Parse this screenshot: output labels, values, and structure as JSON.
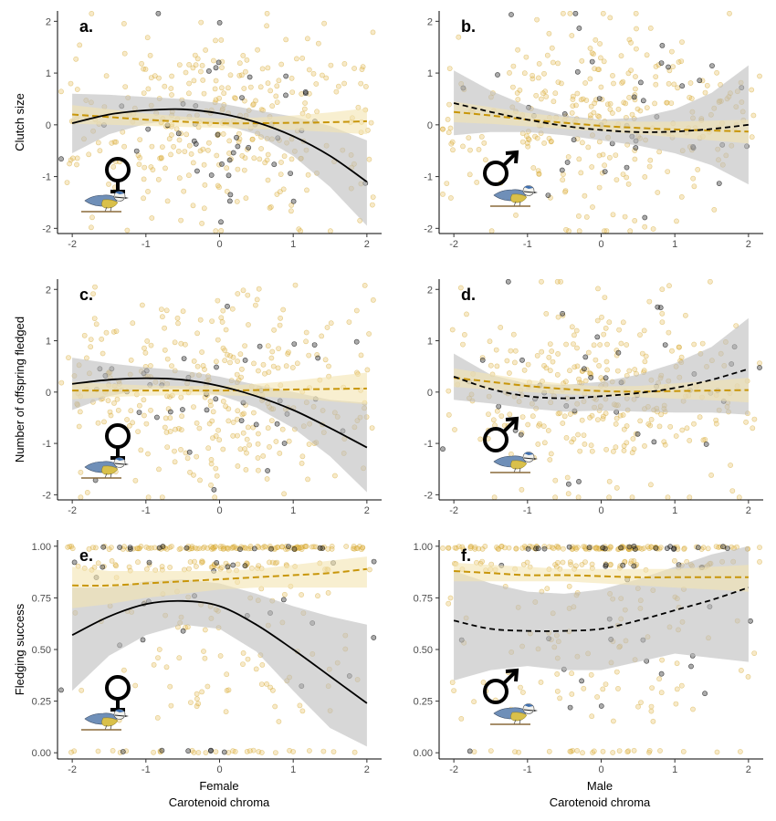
{
  "colors": {
    "point_a": "#e8c060",
    "point_b": "#444444",
    "line_a": "#c8960a",
    "line_b": "#000000",
    "band_a": "#f4e4b0",
    "band_b": "#bdbdbd"
  },
  "icons": {
    "female": "female-symbol-icon",
    "male": "male-symbol-icon",
    "bird": "blue-tit-bird-icon"
  },
  "col_labels": [
    {
      "group": "Female",
      "axis": "Carotenoid chroma"
    },
    {
      "group": "Male",
      "axis": "Carotenoid chroma"
    }
  ],
  "chart_data": [
    {
      "id": "a",
      "type": "scatter",
      "letter": "a.",
      "row": 0,
      "col": 0,
      "sex": "female",
      "ylabel": "Clutch size",
      "xlim": [
        -2.2,
        2.2
      ],
      "ylim": [
        -2.1,
        2.2
      ],
      "xticks": [
        -2,
        -1,
        0,
        1,
        2
      ],
      "yticks": [
        -2,
        -1,
        0,
        1,
        2
      ],
      "series": [
        {
          "x": [
            -2,
            -1.5,
            -1,
            -0.5,
            0,
            0.5,
            1,
            1.5,
            2
          ],
          "y": [
            0.2,
            0.15,
            0.1,
            0.06,
            0.03,
            0.03,
            0.04,
            0.05,
            0.07
          ],
          "lower": [
            0.02,
            0.0,
            -0.02,
            -0.04,
            -0.06,
            -0.08,
            -0.1,
            -0.14,
            -0.18
          ],
          "upper": [
            0.38,
            0.3,
            0.22,
            0.16,
            0.12,
            0.14,
            0.18,
            0.24,
            0.32
          ]
        },
        {
          "x": [
            -2,
            -1.5,
            -1,
            -0.5,
            0,
            0.5,
            1,
            1.5,
            2
          ],
          "y": [
            0.03,
            0.2,
            0.28,
            0.3,
            0.22,
            0.05,
            -0.22,
            -0.6,
            -1.1
          ],
          "lower": [
            -0.55,
            -0.18,
            0.02,
            0.1,
            0.02,
            -0.18,
            -0.6,
            -1.2,
            -1.95
          ],
          "upper": [
            0.6,
            0.58,
            0.54,
            0.5,
            0.42,
            0.28,
            0.16,
            -0.02,
            -0.3
          ]
        }
      ],
      "points_seed": 11,
      "n_a": 320,
      "n_b": 45
    },
    {
      "id": "b",
      "type": "scatter",
      "letter": "b.",
      "row": 0,
      "col": 1,
      "sex": "male",
      "ylabel": "",
      "xlim": [
        -2.2,
        2.2
      ],
      "ylim": [
        -2.1,
        2.2
      ],
      "xticks": [
        -2,
        -1,
        0,
        1,
        2
      ],
      "yticks": [
        -2,
        -1,
        0,
        1,
        2
      ],
      "series": [
        {
          "x": [
            -2,
            -1.5,
            -1,
            -0.5,
            0,
            0.5,
            1,
            1.5,
            2
          ],
          "y": [
            0.25,
            0.18,
            0.1,
            0.04,
            -0.02,
            -0.06,
            -0.09,
            -0.11,
            -0.13
          ],
          "lower": [
            0.05,
            0.02,
            -0.03,
            -0.08,
            -0.12,
            -0.18,
            -0.24,
            -0.3,
            -0.36
          ],
          "upper": [
            0.45,
            0.34,
            0.23,
            0.15,
            0.08,
            0.06,
            0.06,
            0.08,
            0.1
          ]
        },
        {
          "x": [
            -2,
            -1.5,
            -1,
            -0.5,
            0,
            0.5,
            1,
            1.5,
            2
          ],
          "y": [
            0.42,
            0.25,
            0.1,
            -0.02,
            -0.1,
            -0.14,
            -0.13,
            -0.08,
            0.0
          ],
          "lower": [
            -0.2,
            -0.14,
            -0.14,
            -0.2,
            -0.3,
            -0.4,
            -0.55,
            -0.78,
            -1.15
          ],
          "upper": [
            1.05,
            0.66,
            0.36,
            0.18,
            0.1,
            0.14,
            0.3,
            0.62,
            1.15
          ]
        }
      ],
      "points_seed": 23,
      "n_a": 300,
      "n_b": 40
    },
    {
      "id": "c",
      "type": "scatter",
      "letter": "c.",
      "row": 1,
      "col": 0,
      "sex": "female",
      "ylabel": "Number of offspring fledged",
      "xlim": [
        -2.2,
        2.2
      ],
      "ylim": [
        -2.1,
        2.2
      ],
      "xticks": [
        -2,
        -1,
        0,
        1,
        2
      ],
      "yticks": [
        -2,
        -1,
        0,
        1,
        2
      ],
      "series": [
        {
          "x": [
            -2,
            -1.5,
            -1,
            -0.5,
            0,
            0.5,
            1,
            1.5,
            2
          ],
          "y": [
            0.03,
            0.03,
            0.03,
            0.03,
            0.03,
            0.04,
            0.05,
            0.06,
            0.07
          ],
          "lower": [
            -0.14,
            -0.1,
            -0.07,
            -0.06,
            -0.06,
            -0.08,
            -0.12,
            -0.18,
            -0.24
          ],
          "upper": [
            0.2,
            0.16,
            0.13,
            0.12,
            0.12,
            0.16,
            0.22,
            0.3,
            0.38
          ]
        },
        {
          "x": [
            -2,
            -1.5,
            -1,
            -0.5,
            0,
            0.5,
            1,
            1.5,
            2
          ],
          "y": [
            0.16,
            0.24,
            0.27,
            0.24,
            0.12,
            -0.08,
            -0.35,
            -0.7,
            -1.08
          ],
          "lower": [
            -0.35,
            -0.08,
            0.06,
            0.06,
            -0.06,
            -0.3,
            -0.7,
            -1.25,
            -1.95
          ],
          "upper": [
            0.67,
            0.56,
            0.48,
            0.42,
            0.3,
            0.14,
            -0.0,
            -0.15,
            -0.21
          ]
        }
      ],
      "points_seed": 37,
      "n_a": 320,
      "n_b": 40
    },
    {
      "id": "d",
      "type": "scatter",
      "letter": "d.",
      "row": 1,
      "col": 1,
      "sex": "male",
      "ylabel": "",
      "xlim": [
        -2.2,
        2.2
      ],
      "ylim": [
        -2.1,
        2.2
      ],
      "xticks": [
        -2,
        -1,
        0,
        1,
        2
      ],
      "yticks": [
        -2,
        -1,
        0,
        1,
        2
      ],
      "series": [
        {
          "x": [
            -2,
            -1.5,
            -1,
            -0.5,
            0,
            0.5,
            1,
            1.5,
            2
          ],
          "y": [
            0.28,
            0.2,
            0.12,
            0.06,
            0.02,
            0.01,
            0.02,
            0.03,
            0.04
          ],
          "lower": [
            0.1,
            0.05,
            0.0,
            -0.04,
            -0.07,
            -0.1,
            -0.13,
            -0.16,
            -0.2
          ],
          "upper": [
            0.46,
            0.35,
            0.24,
            0.16,
            0.11,
            0.12,
            0.17,
            0.22,
            0.28
          ]
        },
        {
          "x": [
            -2,
            -1.5,
            -1,
            -0.5,
            0,
            0.5,
            1,
            1.5,
            2
          ],
          "y": [
            0.3,
            0.06,
            -0.08,
            -0.12,
            -0.08,
            -0.02,
            0.08,
            0.24,
            0.45
          ],
          "lower": [
            -0.15,
            -0.22,
            -0.32,
            -0.38,
            -0.36,
            -0.38,
            -0.4,
            -0.4,
            -0.44
          ],
          "upper": [
            0.75,
            0.34,
            0.16,
            0.14,
            0.2,
            0.34,
            0.56,
            0.88,
            1.44
          ]
        }
      ],
      "points_seed": 53,
      "n_a": 300,
      "n_b": 40
    },
    {
      "id": "e",
      "type": "scatter",
      "letter": "e.",
      "row": 2,
      "col": 0,
      "sex": "female",
      "ylabel": "Fledging success",
      "xlim": [
        -2.2,
        2.2
      ],
      "ylim": [
        -0.03,
        1.03
      ],
      "xticks": [
        -2,
        -1,
        0,
        1,
        2
      ],
      "yticks": [
        0,
        0.25,
        0.5,
        0.75,
        1.0
      ],
      "ytick_labels": [
        "0.00",
        "0.25",
        "0.50",
        "0.75",
        "1.00"
      ],
      "bounded": true,
      "series": [
        {
          "x": [
            -2,
            -1.5,
            -1,
            -0.5,
            0,
            0.5,
            1,
            1.5,
            2
          ],
          "y": [
            0.81,
            0.81,
            0.82,
            0.83,
            0.84,
            0.85,
            0.86,
            0.87,
            0.89
          ],
          "lower": [
            0.7,
            0.72,
            0.75,
            0.77,
            0.79,
            0.8,
            0.8,
            0.8,
            0.8
          ],
          "upper": [
            0.9,
            0.88,
            0.88,
            0.88,
            0.88,
            0.89,
            0.91,
            0.93,
            0.95
          ]
        },
        {
          "x": [
            -2,
            -1.5,
            -1,
            -0.5,
            0,
            0.5,
            1,
            1.5,
            2
          ],
          "y": [
            0.57,
            0.66,
            0.72,
            0.735,
            0.71,
            0.62,
            0.5,
            0.37,
            0.24
          ],
          "lower": [
            0.3,
            0.47,
            0.57,
            0.62,
            0.6,
            0.49,
            0.3,
            0.12,
            0.03
          ],
          "upper": [
            0.8,
            0.8,
            0.83,
            0.84,
            0.82,
            0.77,
            0.71,
            0.66,
            0.62
          ]
        }
      ],
      "points_seed": 71,
      "n_a": 300,
      "n_b": 45
    },
    {
      "id": "f",
      "type": "scatter",
      "letter": "f.",
      "row": 2,
      "col": 1,
      "sex": "male",
      "ylabel": "",
      "xlim": [
        -2.2,
        2.2
      ],
      "ylim": [
        -0.03,
        1.03
      ],
      "xticks": [
        -2,
        -1,
        0,
        1,
        2
      ],
      "yticks": [
        0,
        0.25,
        0.5,
        0.75,
        1.0
      ],
      "ytick_labels": [
        "0.00",
        "0.25",
        "0.50",
        "0.75",
        "1.00"
      ],
      "bounded": true,
      "series": [
        {
          "x": [
            -2,
            -1.5,
            -1,
            -0.5,
            0,
            0.5,
            1,
            1.5,
            2
          ],
          "y": [
            0.88,
            0.87,
            0.86,
            0.86,
            0.855,
            0.85,
            0.85,
            0.85,
            0.85
          ],
          "lower": [
            0.83,
            0.83,
            0.83,
            0.83,
            0.82,
            0.81,
            0.8,
            0.79,
            0.78
          ],
          "upper": [
            0.92,
            0.91,
            0.9,
            0.89,
            0.89,
            0.89,
            0.89,
            0.9,
            0.91
          ]
        },
        {
          "x": [
            -2,
            -1.5,
            -1,
            -0.5,
            0,
            0.5,
            1,
            1.5,
            2
          ],
          "y": [
            0.64,
            0.6,
            0.59,
            0.59,
            0.6,
            0.64,
            0.69,
            0.74,
            0.8
          ],
          "lower": [
            0.35,
            0.4,
            0.42,
            0.4,
            0.4,
            0.44,
            0.48,
            0.46,
            0.44
          ],
          "upper": [
            0.88,
            0.82,
            0.78,
            0.77,
            0.79,
            0.84,
            0.9,
            0.96,
            1.0
          ]
        }
      ],
      "points_seed": 89,
      "n_a": 300,
      "n_b": 45
    }
  ]
}
